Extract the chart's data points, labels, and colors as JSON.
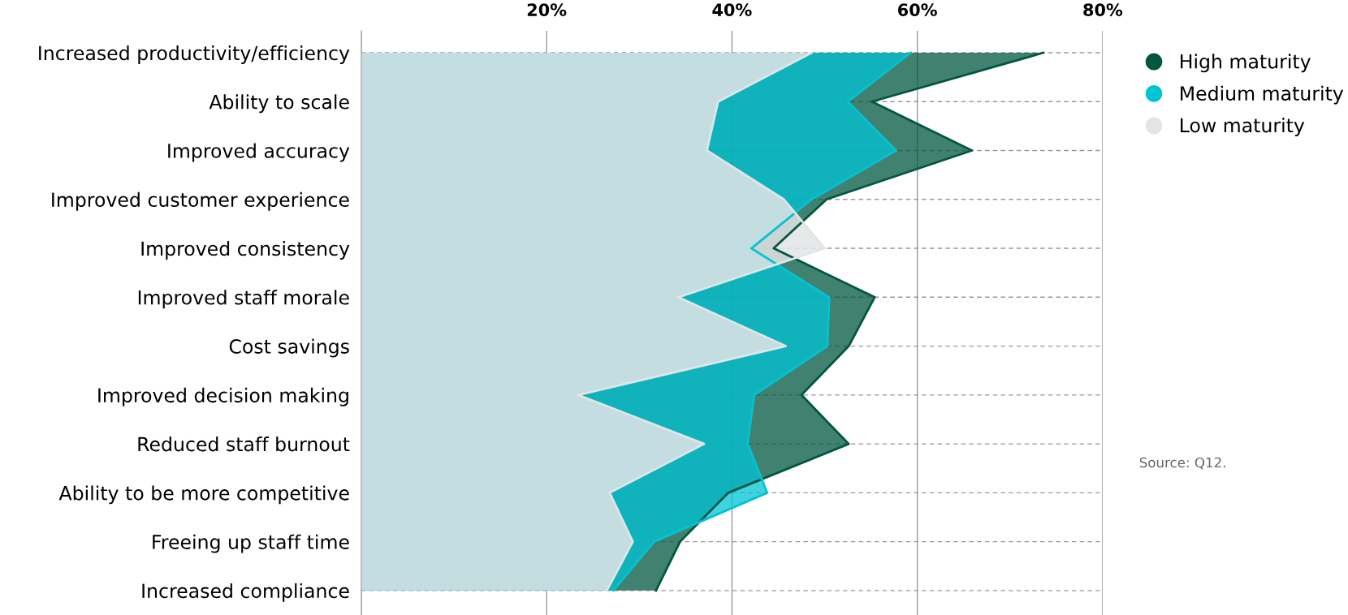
{
  "chart_data": {
    "type": "area",
    "orientation": "horizontal",
    "categories": [
      "Increased productivity/efficiency",
      "Ability to scale",
      "Improved accuracy",
      "Improved customer experience",
      "Improved consistency",
      "Improved staff morale",
      "Cost savings",
      "Improved decision making",
      "Reduced staff burnout",
      "Ability to be more competitive",
      "Freeing up staff time",
      "Increased compliance"
    ],
    "series": [
      {
        "name": "High maturity",
        "color": "#00573f",
        "values": [
          73.6,
          55.1,
          65.9,
          50.2,
          44.5,
          55.4,
          52.6,
          47.5,
          52.6,
          39.6,
          34.4,
          31.8
        ]
      },
      {
        "name": "Medium maturity",
        "color": "#00c4d4",
        "values": [
          59.3,
          52.5,
          57.7,
          48.6,
          42.1,
          50.5,
          50.3,
          42.4,
          41.7,
          43.8,
          31.6,
          27.2
        ]
      },
      {
        "name": "Low maturity",
        "color": "#e3e4e6",
        "values": [
          48.6,
          38.5,
          37.3,
          45.6,
          50.0,
          34.2,
          45.8,
          23.4,
          37.0,
          26.8,
          29.3,
          26.5
        ]
      }
    ],
    "xlim": [
      0,
      80
    ],
    "xticks": [
      {
        "value": 0,
        "label": null
      },
      {
        "value": 20,
        "label": "20%"
      },
      {
        "value": 40,
        "label": "40%"
      },
      {
        "value": 60,
        "label": "60%"
      },
      {
        "value": 80,
        "label": "80%"
      }
    ],
    "grid": true,
    "legend": "right",
    "line_style": "solid",
    "annotations": [
      "Source: Q12."
    ]
  }
}
